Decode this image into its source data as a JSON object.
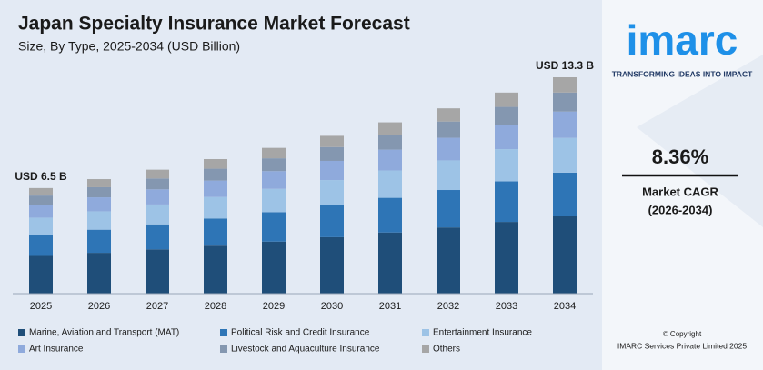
{
  "chart_data": {
    "type": "stacked_bar",
    "title": "Japan Specialty Insurance Market Forecast",
    "subtitle": "Size, By Type, 2025-2034 (USD Billion)",
    "start_label": "USD 6.5 B",
    "end_label": "USD 13.3 B",
    "categories": [
      "2025",
      "2026",
      "2027",
      "2028",
      "2029",
      "2030",
      "2031",
      "2032",
      "2033",
      "2034"
    ],
    "series": [
      {
        "name": "Marine, Aviation and Transport (MAT)",
        "color": "#1f4e79",
        "values": [
          2.32,
          2.51,
          2.72,
          2.95,
          3.2,
          3.47,
          3.76,
          4.07,
          4.41,
          4.75
        ]
      },
      {
        "name": "Political Risk and Credit Insurance",
        "color": "#2e75b6",
        "values": [
          1.31,
          1.42,
          1.54,
          1.67,
          1.81,
          1.96,
          2.13,
          2.3,
          2.49,
          2.69
        ]
      },
      {
        "name": "Entertainment Insurance",
        "color": "#9dc3e6",
        "values": [
          1.04,
          1.13,
          1.22,
          1.32,
          1.43,
          1.55,
          1.68,
          1.82,
          1.98,
          2.13
        ]
      },
      {
        "name": "Art Insurance",
        "color": "#8faadc",
        "values": [
          0.79,
          0.86,
          0.93,
          1.01,
          1.09,
          1.18,
          1.28,
          1.39,
          1.51,
          1.62
        ]
      },
      {
        "name": "Livestock and Aquaculture Insurance",
        "color": "#8497b0",
        "values": [
          0.57,
          0.62,
          0.67,
          0.73,
          0.79,
          0.85,
          0.93,
          1.0,
          1.09,
          1.17
        ]
      },
      {
        "name": "Others",
        "color": "#a6a6a6",
        "values": [
          0.46,
          0.5,
          0.54,
          0.59,
          0.64,
          0.69,
          0.75,
          0.81,
          0.88,
          0.94
        ]
      }
    ]
  },
  "sidebar": {
    "logo": "imarc",
    "tagline": "TRANSFORMING IDEAS INTO IMPACT",
    "cagr": "8.36%",
    "cagr_label": "Market CAGR",
    "cagr_period": "(2026-2034)",
    "copyright": "© Copyright",
    "company": "IMARC Services Private Limited 2025"
  }
}
